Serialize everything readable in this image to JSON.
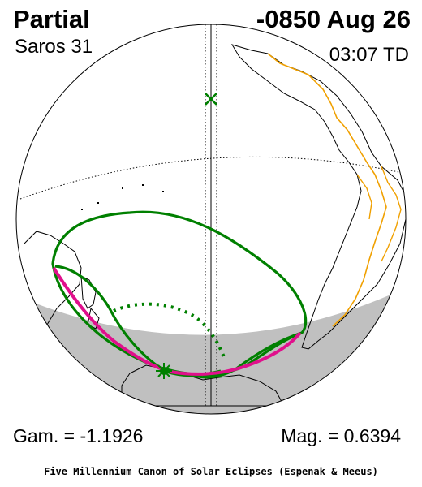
{
  "header": {
    "eclipse_type": "Partial",
    "date": "-0850 Aug 26",
    "saros": "Saros  31",
    "time": "03:07 TD"
  },
  "footer": {
    "gamma": "Gam. = -1.1926",
    "magnitude": "Mag. = 0.6394",
    "credit": "Five Millennium Canon of Solar Eclipses (Espenak & Meeus)"
  },
  "colors": {
    "coastline": "#000000",
    "borders": "#f0a000",
    "penumbral_limits": "#008000",
    "sunrise_sunset_curves": "#e0108c",
    "night_shade": "#c0c0c0"
  },
  "markers": {
    "greatest_eclipse": "asterisk-icon",
    "subsolar_point": "cross-icon"
  }
}
